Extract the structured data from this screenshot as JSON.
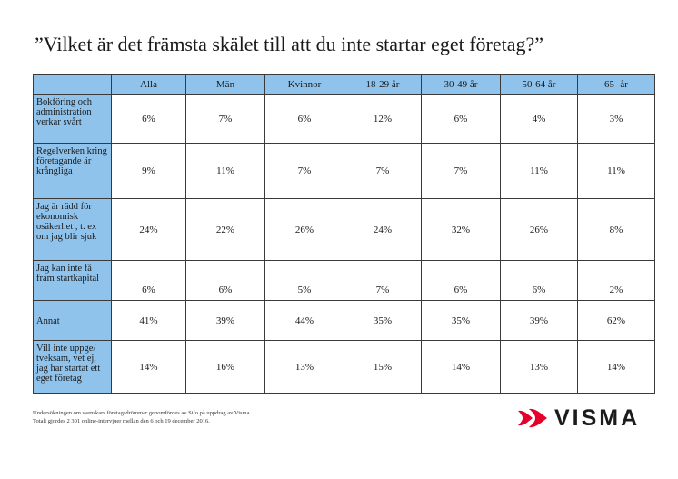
{
  "title": "”Vilket är det främsta skälet till att du inte startar eget företag?”",
  "table": {
    "headers": [
      "",
      "Alla",
      "Män",
      "Kvinnor",
      "18-29 år",
      "30-49 år",
      "50-64 år",
      "65- år"
    ],
    "rows": [
      {
        "label": "Bokföring och administration verkar svårt",
        "values": [
          "6%",
          "7%",
          "6%",
          "12%",
          "6%",
          "4%",
          "3%"
        ]
      },
      {
        "label": "Regelverken kring företagande är krångliga",
        "values": [
          "9%",
          "11%",
          "7%",
          "7%",
          "7%",
          "11%",
          "11%"
        ]
      },
      {
        "label": "Jag är rädd för ekonomisk osäkerhet , t. ex om jag blir sjuk",
        "values": [
          "24%",
          "22%",
          "26%",
          "24%",
          "32%",
          "26%",
          "8%"
        ]
      },
      {
        "label": "Jag kan inte få fram startkapital",
        "values": [
          "6%",
          "6%",
          "5%",
          "7%",
          "6%",
          "6%",
          "2%"
        ]
      },
      {
        "label": "Annat",
        "values": [
          "41%",
          "39%",
          "44%",
          "35%",
          "35%",
          "39%",
          "62%"
        ]
      },
      {
        "label": "Vill inte uppge/ tveksam, vet ej, jag har startat ett eget företag",
        "values": [
          "14%",
          "16%",
          "13%",
          "15%",
          "14%",
          "13%",
          "14%"
        ]
      }
    ]
  },
  "footnote": {
    "line1": "Undersökningen om svenskars företagsdrömmar genomfördes av Sifo på uppdrag av Visma.",
    "line2": "Totalt gjordes 2 301 online-intervjuer mellan den 6 och 19 december 2016."
  },
  "logo": {
    "text": "VISMA",
    "color": "#e4002b"
  }
}
